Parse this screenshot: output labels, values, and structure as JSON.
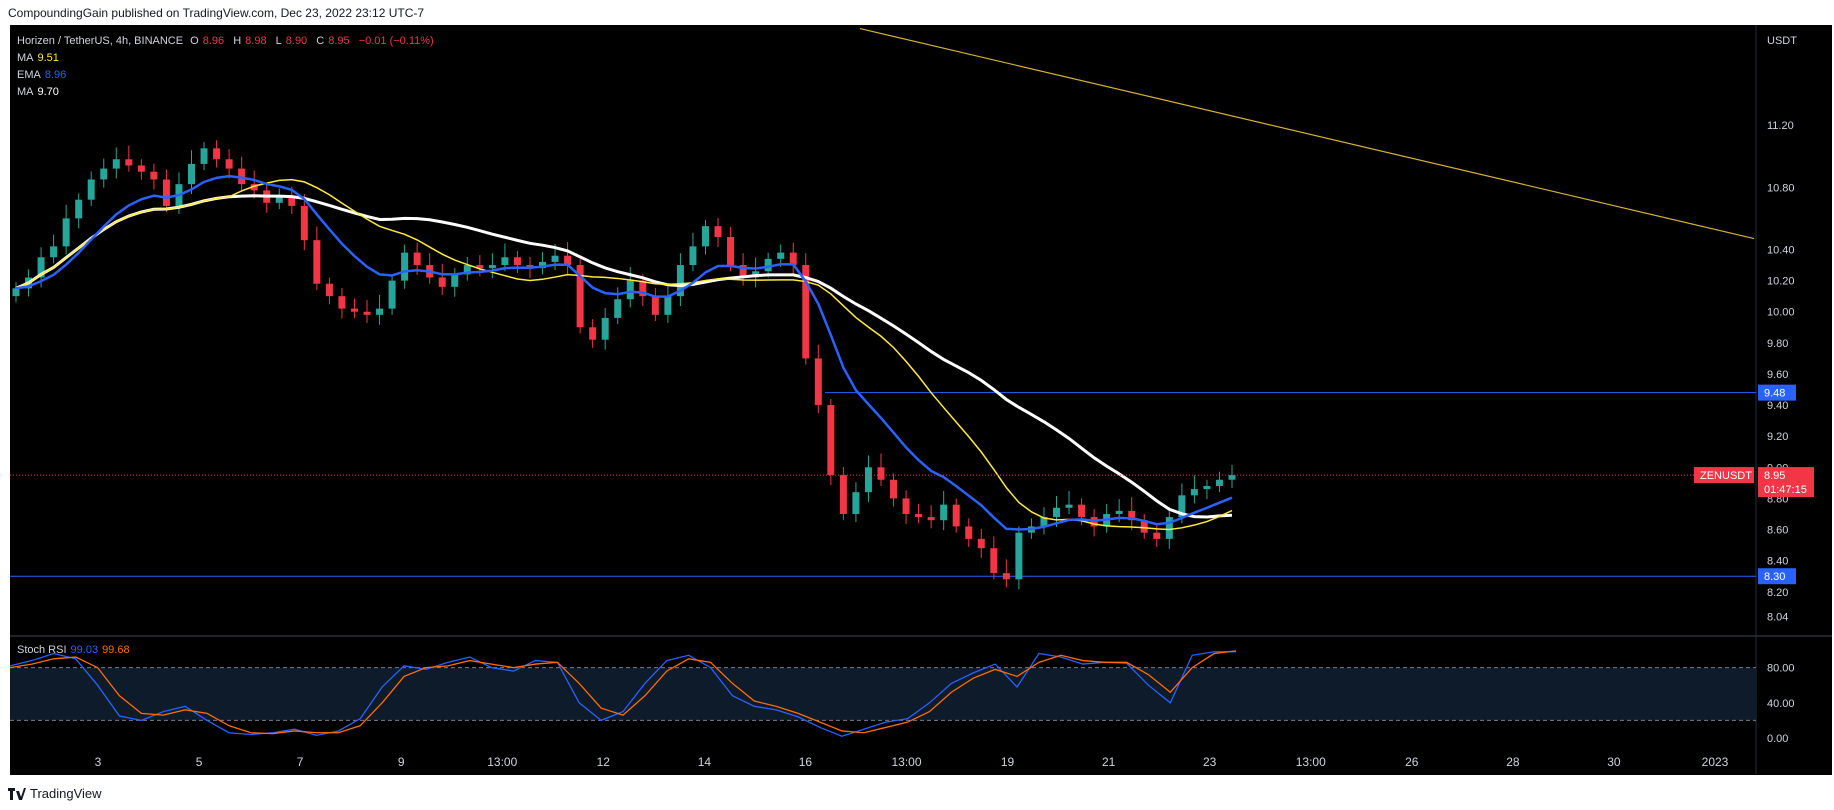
{
  "header": {
    "publish_line": "CompoundingGain published on TradingView.com, Dec 23, 2022 23:12 UTC-7"
  },
  "footer": {
    "brand": "TradingView"
  },
  "legend": {
    "symbol_line": {
      "pair": "Horizen / TetherUS, 4h, BINANCE",
      "o_label": "O",
      "o_val": "8.96",
      "h_label": "H",
      "h_val": "8.98",
      "l_label": "L",
      "l_val": "8.90",
      "c_label": "C",
      "c_val": "8.95",
      "chg": "−0.01 (−0.11%)"
    },
    "ma1": {
      "label": "MA",
      "value": "9.51"
    },
    "ema": {
      "label": "EMA",
      "value": "8.96"
    },
    "ma2": {
      "label": "MA",
      "value": "9.70"
    },
    "stoch": {
      "label": "Stoch RSI",
      "k": "99.03",
      "d": "99.68"
    }
  },
  "colors": {
    "background": "#000000",
    "up": "#26a69a",
    "down": "#f23645",
    "ema_line": "#2962ff",
    "ma_fast": "#ffeb3b",
    "ma_slow": "#ffffff",
    "trend_line": "#d4b23a",
    "hline": "#2962ff",
    "stoch_k": "#2962ff",
    "stoch_d": "#ff6d00",
    "price_tag": "#f23645"
  },
  "chart_data": {
    "type": "candlestick",
    "symbol": "ZENUSDT",
    "currency": "USDT",
    "price_axis_ticks": [
      "11.20",
      "10.80",
      "10.40",
      "10.20",
      "10.00",
      "9.80",
      "9.60",
      "9.40",
      "9.20",
      "9.00",
      "8.80",
      "8.60",
      "8.40",
      "8.20",
      "8.04"
    ],
    "time_axis_labels": [
      "3",
      "5",
      "7",
      "9",
      "13:00",
      "12",
      "14",
      "16",
      "13:00",
      "19",
      "21",
      "23",
      "13:00",
      "26",
      "28",
      "30",
      "2023"
    ],
    "horizontal_levels": [
      {
        "value": 9.48,
        "label": "9.48"
      },
      {
        "value": 8.3,
        "label": "8.30"
      }
    ],
    "last_price": {
      "symbol_label": "ZENUSDT",
      "value": "8.95",
      "countdown": "01:47:15"
    },
    "trend_line": {
      "from": 11.82,
      "to": 10.47
    },
    "ohlc_closes": [
      10.15,
      10.22,
      10.35,
      10.42,
      10.6,
      10.72,
      10.85,
      10.92,
      10.98,
      10.94,
      10.9,
      10.85,
      10.68,
      10.82,
      10.95,
      11.05,
      10.98,
      10.92,
      10.82,
      10.78,
      10.7,
      10.74,
      10.68,
      10.46,
      10.18,
      10.1,
      10.02,
      10.0,
      9.98,
      10.02,
      10.2,
      10.38,
      10.3,
      10.22,
      10.16,
      10.24,
      10.3,
      10.28,
      10.3,
      10.35,
      10.3,
      10.28,
      10.32,
      10.36,
      10.3,
      9.9,
      9.82,
      9.96,
      10.08,
      10.2,
      10.1,
      9.98,
      10.1,
      10.3,
      10.42,
      10.55,
      10.48,
      10.3,
      10.22,
      10.26,
      10.34,
      10.38,
      10.3,
      9.7,
      9.4,
      8.95,
      8.7,
      8.84,
      9.0,
      8.92,
      8.8,
      8.7,
      8.68,
      8.66,
      8.76,
      8.62,
      8.54,
      8.48,
      8.32,
      8.28,
      8.58,
      8.62,
      8.68,
      8.74,
      8.76,
      8.68,
      8.62,
      8.7,
      8.72,
      8.66,
      8.58,
      8.54,
      8.68,
      8.82,
      8.86,
      8.88,
      8.92,
      8.95
    ],
    "indicators": {
      "ema": "blue line ending near 8.96",
      "ma_fast": "yellow line ending near 9.51",
      "ma_slow": "white line ending near 9.70"
    },
    "stoch_rsi": {
      "levels": [
        80,
        20
      ],
      "axis_ticks": [
        "80.00",
        "40.00",
        "0.00"
      ],
      "k": [
        82,
        88,
        96,
        90,
        60,
        25,
        20,
        30,
        36,
        20,
        6,
        4,
        6,
        10,
        3,
        8,
        22,
        58,
        82,
        78,
        86,
        92,
        80,
        76,
        88,
        86,
        40,
        20,
        30,
        62,
        88,
        94,
        80,
        48,
        36,
        32,
        24,
        12,
        2,
        10,
        18,
        22,
        40,
        62,
        74,
        84,
        58,
        96,
        92,
        84,
        86,
        85,
        60,
        40,
        94,
        98,
        98
      ],
      "d": [
        80,
        84,
        90,
        92,
        80,
        48,
        28,
        26,
        32,
        28,
        14,
        6,
        5,
        8,
        6,
        6,
        14,
        40,
        70,
        80,
        82,
        88,
        84,
        80,
        84,
        86,
        62,
        34,
        26,
        48,
        76,
        90,
        86,
        62,
        42,
        36,
        28,
        18,
        8,
        6,
        12,
        18,
        30,
        52,
        68,
        78,
        70,
        86,
        94,
        88,
        86,
        86,
        72,
        52,
        80,
        96,
        99
      ]
    }
  }
}
